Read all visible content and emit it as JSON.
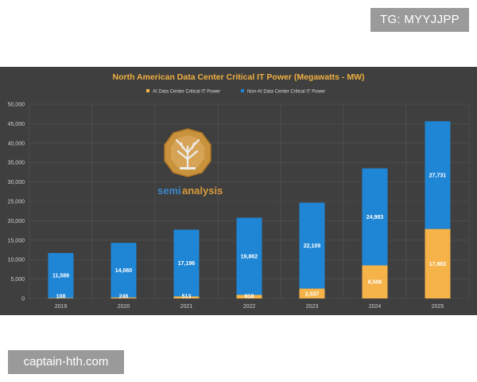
{
  "watermarks": {
    "top_right": "TG: MYYJJPP",
    "bottom_left": "captain-hth.com"
  },
  "logo": {
    "text_part1": "semi",
    "text_part2": "analysis"
  },
  "colors": {
    "ai": "#f5b349",
    "non_ai": "#1f86d6",
    "title": "#f0b040",
    "background": "#3f3f3f"
  },
  "chart_data": {
    "type": "bar",
    "stacked": true,
    "title": "North American Data Center Critical IT Power (Megawatts - MW)",
    "xlabel": "",
    "ylabel": "",
    "categories": [
      "2019",
      "2020",
      "2021",
      "2022",
      "2023",
      "2024",
      "2025"
    ],
    "series": [
      {
        "name": "AI Data Center Critical IT Power",
        "values": [
          108,
          246,
          513,
          918,
          2537,
          8506,
          17883
        ],
        "labels": [
          "108",
          "246",
          "513",
          "918",
          "2,537",
          "8,506",
          "17,883"
        ]
      },
      {
        "name": "Non-AI Data Center Critical IT Power",
        "values": [
          11589,
          14060,
          17196,
          19862,
          22109,
          24983,
          27731
        ],
        "labels": [
          "11,589",
          "14,060",
          "17,196",
          "19,862",
          "22,109",
          "24,983",
          "27,731"
        ]
      }
    ],
    "ylim": [
      0,
      50000
    ],
    "yticks": [
      0,
      5000,
      10000,
      15000,
      20000,
      25000,
      30000,
      35000,
      40000,
      45000,
      50000
    ],
    "ytick_labels": [
      "0",
      "5,000",
      "10,000",
      "15,000",
      "20,000",
      "25,000",
      "30,000",
      "35,000",
      "40,000",
      "45,000",
      "50,000"
    ],
    "legend_position": "top-center",
    "grid": true
  }
}
